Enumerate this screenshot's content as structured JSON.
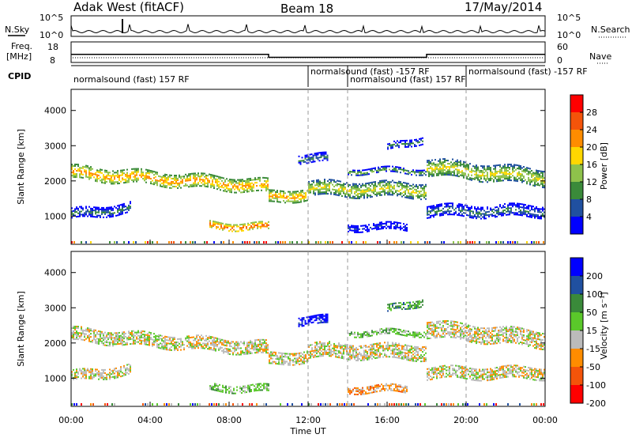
{
  "header": {
    "station": "Adak West (fitACF)",
    "beam": "Beam 18",
    "date": "17/May/2014"
  },
  "side_labels": {
    "nsky": "N.Sky",
    "nsearch": "N.Search",
    "freq_line1": "Freq.",
    "freq_line2": "[MHz]",
    "nave": "Nave",
    "cpid": "CPID"
  },
  "small_axes": {
    "noise_left_ticks": [
      "10^5",
      "10^0"
    ],
    "noise_right_ticks": [
      "10^5",
      "10^0"
    ],
    "freq_left_ticks": [
      "18",
      "8"
    ],
    "nave_right_ticks": [
      "60",
      "0"
    ]
  },
  "cpid_labels": [
    "normalsound (fast) 157 RF",
    "normalsound (fast) -157 RF",
    "normalsound (fast) 157 RF",
    "normalsound (fast) -157 RF"
  ],
  "power_colorbar": {
    "label": "Power [dB]",
    "ticks": [
      "28",
      "24",
      "20",
      "16",
      "12",
      "8",
      "4"
    ],
    "colors": [
      "#ff0000",
      "#f4540a",
      "#ff8c00",
      "#ffd700",
      "#8ec24b",
      "#3a8a3a",
      "#2050a0",
      "#0000ff"
    ]
  },
  "velocity_colorbar": {
    "label": "Velocity [m s⁻¹]",
    "ticks": [
      "200",
      "100",
      "50",
      "15",
      "-15",
      "-50",
      "-100",
      "-200"
    ],
    "colors": [
      "#0000ff",
      "#2050a0",
      "#3a8a3a",
      "#5ac82a",
      "#bbbbbb",
      "#ff8c00",
      "#f4540a",
      "#ff0000"
    ]
  },
  "chart_data": {
    "type": "heatmap",
    "x_ticks": [
      "00:00",
      "04:00",
      "08:00",
      "12:00",
      "16:00",
      "20:00",
      "00:00"
    ],
    "xlabel": "Time UT",
    "ylabel": "Slant Range [km]",
    "y_ticks": [
      1000,
      2000,
      3000,
      4000
    ],
    "ylim": [
      200,
      4600
    ],
    "xlim_hours": [
      0,
      24
    ],
    "freq_mhz": [
      {
        "from": 0,
        "to": 10,
        "value": 11.5
      },
      {
        "from": 10,
        "to": 18,
        "value": 9.5
      },
      {
        "from": 18,
        "to": 24,
        "value": 11.5
      }
    ],
    "cpid_segments": [
      {
        "from": 0,
        "to": 12,
        "label_index": 0
      },
      {
        "from": 12,
        "to": 14,
        "label_index": 1
      },
      {
        "from": 14,
        "to": 20,
        "label_index": 2
      },
      {
        "from": 20,
        "to": 24,
        "label_index": 3
      }
    ],
    "bands": [
      {
        "from": 0,
        "to": 10,
        "center_start": 2250,
        "center_end": 1850,
        "width": 380,
        "power_level": 5,
        "velocity_level": 4
      },
      {
        "from": 10,
        "to": 12,
        "center_start": 1550,
        "center_end": 1650,
        "width": 320,
        "power_level": 5,
        "velocity_level": 4
      },
      {
        "from": 12,
        "to": 18,
        "center_start": 1800,
        "center_end": 1750,
        "width": 420,
        "power_level": 4,
        "velocity_level": 4
      },
      {
        "from": 18,
        "to": 24,
        "center_start": 2400,
        "center_end": 2100,
        "width": 480,
        "power_level": 4,
        "velocity_level": 4
      },
      {
        "from": 0,
        "to": 3,
        "center_start": 1050,
        "center_end": 1250,
        "width": 300,
        "power_level": 2,
        "velocity_level": 4
      },
      {
        "from": 7,
        "to": 10,
        "center_start": 750,
        "center_end": 700,
        "width": 200,
        "power_level": 6,
        "velocity_level": 3
      },
      {
        "from": 14,
        "to": 18,
        "center_start": 2300,
        "center_end": 2300,
        "width": 150,
        "power_level": 3,
        "velocity_level": 3
      },
      {
        "from": 14,
        "to": 17,
        "center_start": 700,
        "center_end": 700,
        "width": 200,
        "power_level": 1,
        "velocity_level": 5
      },
      {
        "from": 11.5,
        "to": 13,
        "center_start": 2650,
        "center_end": 2650,
        "width": 250,
        "power_level": 2,
        "velocity_level": 0
      },
      {
        "from": 16,
        "to": 17.8,
        "center_start": 2950,
        "center_end": 3200,
        "width": 200,
        "power_level": 2,
        "velocity_level": 2
      },
      {
        "from": 18,
        "to": 24,
        "center_start": 1150,
        "center_end": 1150,
        "width": 350,
        "power_level": 2,
        "velocity_level": 4
      }
    ]
  }
}
